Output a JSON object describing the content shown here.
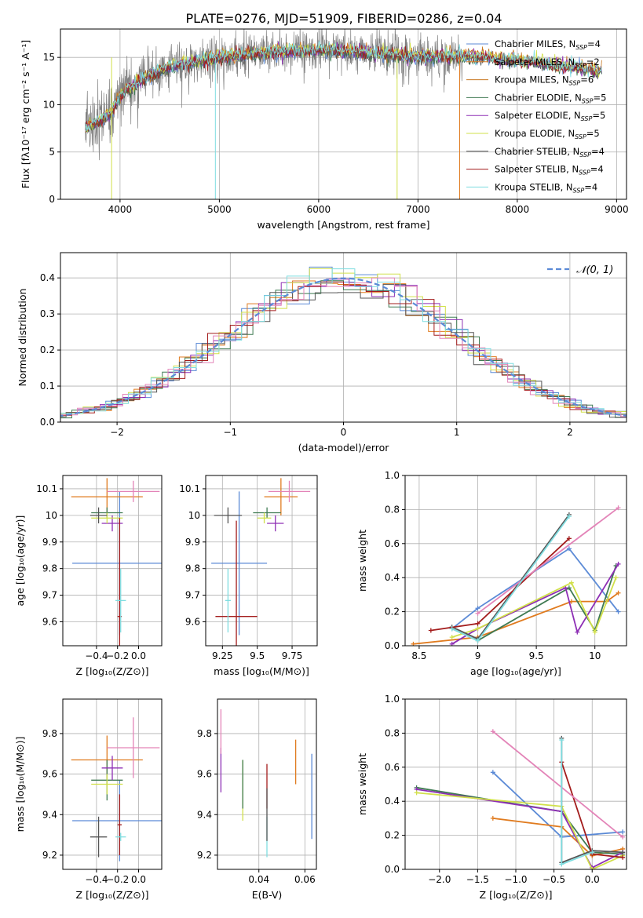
{
  "title": "PLATE=0276, MJD=51909, FIBERID=0286, z=0.04",
  "colors": {
    "c0": "#5b8ad6",
    "c1": "#e07b1f",
    "c2": "#3f7a52",
    "c3": "#8e2fb5",
    "c4": "#d1e04a",
    "c5": "#555555",
    "c6": "#a31c1c",
    "c7": "#e384b8",
    "c8": "#7fdde0",
    "grid": "#b0b0b0",
    "spectrum": "#808080"
  },
  "chart_data": [
    {
      "panel": "spectrum",
      "type": "line",
      "xlabel": "wavelength [Angstrom, rest frame]",
      "ylabel": "Flux [fλ10⁻¹⁷ erg cm⁻² s⁻¹ A⁻¹]",
      "xlim": [
        3400,
        9100
      ],
      "ylim": [
        0,
        18
      ],
      "xticks": [
        4000,
        5000,
        6000,
        7000,
        8000,
        9000
      ],
      "yticks": [
        0,
        5,
        10,
        15
      ],
      "data_range": [
        3650,
        7450
      ],
      "model_range": [
        3650,
        8850
      ],
      "approx_continuum": [
        [
          3650,
          7.5
        ],
        [
          3900,
          9
        ],
        [
          4000,
          11
        ],
        [
          4200,
          12.5
        ],
        [
          4500,
          14
        ],
        [
          5000,
          15
        ],
        [
          5500,
          15.5
        ],
        [
          6000,
          15.8
        ],
        [
          6500,
          15.5
        ],
        [
          7000,
          15
        ],
        [
          7400,
          15.2
        ],
        [
          8000,
          14.7
        ],
        [
          8500,
          14
        ],
        [
          8850,
          13.6
        ]
      ],
      "legend": [
        {
          "name": "Chabrier MILES, N_SSP=4",
          "text": "Chabrier MILES, N",
          "sub": "SSP",
          "suffix": "=4",
          "color": "#5b8ad6"
        },
        {
          "name": "Salpeter MILES, N_SSP=2",
          "text": "Salpeter MILES, N",
          "sub": "SSP",
          "suffix": "=2",
          "color": "#e07b1f"
        },
        {
          "name": "Kroupa MILES, N_SSP=6",
          "text": "Kroupa MILES, N",
          "sub": "SSP",
          "suffix": "=6",
          "color": "#c7761f"
        },
        {
          "name": "Chabrier ELODIE, N_SSP=5",
          "text": "Chabrier ELODIE, N",
          "sub": "SSP",
          "suffix": "=5",
          "color": "#3f7a52"
        },
        {
          "name": "Salpeter ELODIE, N_SSP=5",
          "text": "Salpeter ELODIE, N",
          "sub": "SSP",
          "suffix": "=5",
          "color": "#8e2fb5"
        },
        {
          "name": "Kroupa ELODIE, N_SSP=5",
          "text": "Kroupa ELODIE, N",
          "sub": "SSP",
          "suffix": "=5",
          "color": "#d1e04a"
        },
        {
          "name": "Chabrier STELIB, N_SSP=4",
          "text": "Chabrier STELIB, N",
          "sub": "SSP",
          "suffix": "=4",
          "color": "#555555"
        },
        {
          "name": "Salpeter STELIB, N_SSP=4",
          "text": "Salpeter STELIB, N",
          "sub": "SSP",
          "suffix": "=4",
          "color": "#a31c1c"
        },
        {
          "name": "Kroupa STELIB, N_SSP=4",
          "text": "Kroupa STELIB, N",
          "sub": "SSP",
          "suffix": "=4",
          "color": "#7fdde0"
        }
      ]
    },
    {
      "panel": "residuals",
      "type": "bar",
      "xlabel": "(data-model)/error",
      "ylabel": "Normed distribution",
      "xlim": [
        -2.5,
        2.5
      ],
      "ylim": [
        0,
        0.47
      ],
      "xticks": [
        -2,
        -1,
        0,
        1,
        2
      ],
      "xtick_labels": [
        "−2",
        "−1",
        "0",
        "1",
        "2"
      ],
      "yticks": [
        0.0,
        0.1,
        0.2,
        0.3,
        0.4
      ],
      "grid": true,
      "legend": {
        "label": "𝒩(0, 1)",
        "position": "top-right"
      },
      "bin_width": 0.2,
      "normal_curve": {
        "mean": 0,
        "sigma": 1
      }
    },
    {
      "panel": "Z-age",
      "type": "scatter",
      "xlabel": "Z [log₁₀(Z/Z⊙)]",
      "ylabel": "age  [log₁₀(age/yr)]",
      "xlim": [
        -0.72,
        0.22
      ],
      "ylim": [
        9.51,
        10.15
      ],
      "xticks": [
        -0.4,
        -0.2,
        0.0
      ],
      "xtick_labels": [
        "−0.4",
        "−0.2",
        "0.0"
      ],
      "yticks": [
        9.6,
        9.7,
        9.8,
        9.9,
        10.0,
        10.1
      ],
      "points": [
        {
          "color": "#5b8ad6",
          "x": -0.18,
          "xerr": 0.45,
          "y": 9.82,
          "yerr": 0.27
        },
        {
          "color": "#e07b1f",
          "x": -0.3,
          "xerr": 0.34,
          "y": 10.07,
          "yerr": 0.07
        },
        {
          "color": "#3f7a52",
          "x": -0.3,
          "xerr": 0.15,
          "y": 10.01,
          "yerr": 0.02
        },
        {
          "color": "#8e2fb5",
          "x": -0.25,
          "xerr": 0.1,
          "y": 9.97,
          "yerr": 0.03
        },
        {
          "color": "#d1e04a",
          "x": -0.3,
          "xerr": 0.15,
          "y": 9.99,
          "yerr": 0.02
        },
        {
          "color": "#555555",
          "x": -0.38,
          "xerr": 0.08,
          "y": 10.0,
          "yerr": 0.03
        },
        {
          "color": "#a31c1c",
          "x": -0.18,
          "xerr": 0.02,
          "y": 9.62,
          "yerr": 0.37
        },
        {
          "color": "#e384b8",
          "x": -0.05,
          "xerr": 0.25,
          "y": 10.09,
          "yerr": 0.04
        },
        {
          "color": "#7fdde0",
          "x": -0.17,
          "xerr": 0.05,
          "y": 9.68,
          "yerr": 0.12
        }
      ]
    },
    {
      "panel": "mass-age",
      "type": "scatter",
      "xlabel": "mass [log₁₀(M/M⊙)]",
      "ylabel": "",
      "xlim": [
        9.13,
        9.93
      ],
      "ylim": [
        9.51,
        10.15
      ],
      "xticks": [
        9.25,
        9.5,
        9.75
      ],
      "yticks": [
        9.6,
        9.7,
        9.8,
        9.9,
        10.0,
        10.1
      ],
      "points": [
        {
          "color": "#5b8ad6",
          "x": 9.37,
          "xerr": 0.2,
          "y": 9.82,
          "yerr": 0.27
        },
        {
          "color": "#e07b1f",
          "x": 9.67,
          "xerr": 0.12,
          "y": 10.07,
          "yerr": 0.07
        },
        {
          "color": "#3f7a52",
          "x": 9.57,
          "xerr": 0.1,
          "y": 10.01,
          "yerr": 0.02
        },
        {
          "color": "#8e2fb5",
          "x": 9.63,
          "xerr": 0.06,
          "y": 9.97,
          "yerr": 0.03
        },
        {
          "color": "#d1e04a",
          "x": 9.55,
          "xerr": 0.05,
          "y": 9.99,
          "yerr": 0.02
        },
        {
          "color": "#555555",
          "x": 9.29,
          "xerr": 0.1,
          "y": 10.0,
          "yerr": 0.03
        },
        {
          "color": "#a31c1c",
          "x": 9.35,
          "xerr": 0.15,
          "y": 9.62,
          "yerr": 0.36
        },
        {
          "color": "#e384b8",
          "x": 9.73,
          "xerr": 0.15,
          "y": 10.09,
          "yerr": 0.04
        },
        {
          "color": "#7fdde0",
          "x": 9.29,
          "xerr": 0.02,
          "y": 9.68,
          "yerr": 0.12
        }
      ]
    },
    {
      "panel": "age-weight",
      "type": "line",
      "xlabel": "age  [log₁₀(age/yr)]",
      "ylabel": "mass weight",
      "xlim": [
        8.38,
        10.27
      ],
      "ylim": [
        0,
        1
      ],
      "xticks": [
        8.5,
        9.0,
        9.5,
        10.0
      ],
      "yticks": [
        0.0,
        0.2,
        0.4,
        0.6,
        0.8,
        1.0
      ],
      "grid": true,
      "series": [
        {
          "color": "#5b8ad6",
          "x": [
            8.78,
            9.0,
            9.78,
            10.2
          ],
          "y": [
            0.1,
            0.22,
            0.57,
            0.2
          ]
        },
        {
          "color": "#e07b1f",
          "x": [
            8.45,
            9.0,
            9.8,
            10.1,
            10.2
          ],
          "y": [
            0.01,
            0.05,
            0.26,
            0.26,
            0.31
          ]
        },
        {
          "color": "#3f7a52",
          "x": [
            8.78,
            9.0,
            9.78,
            10.0,
            10.18
          ],
          "y": [
            0.1,
            0.03,
            0.34,
            0.09,
            0.47
          ]
        },
        {
          "color": "#8e2fb5",
          "x": [
            8.78,
            9.0,
            9.75,
            9.85,
            10.2
          ],
          "y": [
            0.01,
            0.1,
            0.34,
            0.08,
            0.48
          ]
        },
        {
          "color": "#d1e04a",
          "x": [
            8.78,
            9.0,
            9.8,
            10.0,
            10.18
          ],
          "y": [
            0.05,
            0.1,
            0.37,
            0.08,
            0.4
          ]
        },
        {
          "color": "#555555",
          "x": [
            8.78,
            9.0,
            9.78
          ],
          "y": [
            0.11,
            0.04,
            0.77
          ]
        },
        {
          "color": "#a31c1c",
          "x": [
            8.6,
            9.0,
            9.78
          ],
          "y": [
            0.09,
            0.13,
            0.63
          ]
        },
        {
          "color": "#e384b8",
          "x": [
            9.0,
            10.2
          ],
          "y": [
            0.19,
            0.81
          ]
        },
        {
          "color": "#7fdde0",
          "x": [
            8.78,
            9.0,
            9.78
          ],
          "y": [
            0.1,
            0.03,
            0.76
          ]
        }
      ]
    },
    {
      "panel": "Z-mass",
      "type": "scatter",
      "xlabel": "Z [log₁₀(Z/Z⊙)]",
      "ylabel": "mass [log₁₀(M/M⊙)]",
      "xlim": [
        -0.72,
        0.22
      ],
      "ylim": [
        9.13,
        9.97
      ],
      "xticks": [
        -0.4,
        -0.2,
        0.0
      ],
      "xtick_labels": [
        "−0.4",
        "−0.2",
        "0.0"
      ],
      "yticks": [
        9.2,
        9.4,
        9.6,
        9.8
      ],
      "points": [
        {
          "color": "#5b8ad6",
          "x": -0.18,
          "xerr": 0.45,
          "y": 9.37,
          "yerr": 0.2
        },
        {
          "color": "#e07b1f",
          "x": -0.3,
          "xerr": 0.34,
          "y": 9.67,
          "yerr": 0.12
        },
        {
          "color": "#3f7a52",
          "x": -0.3,
          "xerr": 0.15,
          "y": 9.57,
          "yerr": 0.1
        },
        {
          "color": "#8e2fb5",
          "x": -0.25,
          "xerr": 0.1,
          "y": 9.63,
          "yerr": 0.06
        },
        {
          "color": "#d1e04a",
          "x": -0.3,
          "xerr": 0.15,
          "y": 9.55,
          "yerr": 0.05
        },
        {
          "color": "#555555",
          "x": -0.38,
          "xerr": 0.08,
          "y": 9.29,
          "yerr": 0.1
        },
        {
          "color": "#a31c1c",
          "x": -0.18,
          "xerr": 0.02,
          "y": 9.35,
          "yerr": 0.15
        },
        {
          "color": "#e384b8",
          "x": -0.05,
          "xerr": 0.25,
          "y": 9.73,
          "yerr": 0.15
        },
        {
          "color": "#7fdde0",
          "x": -0.17,
          "xerr": 0.05,
          "y": 9.29,
          "yerr": 0.02
        }
      ]
    },
    {
      "panel": "EBV-mass",
      "type": "scatter",
      "xlabel": "E(B-V)",
      "ylabel": "",
      "xlim": [
        0.022,
        0.065
      ],
      "ylim": [
        9.13,
        9.97
      ],
      "xticks": [
        0.04,
        0.06
      ],
      "yticks": [
        9.2,
        9.4,
        9.6,
        9.8
      ],
      "points": [
        {
          "color": "#5b8ad6",
          "x": 0.063,
          "y": 9.49,
          "yerr": 0.21
        },
        {
          "color": "#e07b1f",
          "x": 0.056,
          "y": 9.66,
          "yerr": 0.11
        },
        {
          "color": "#8e2fb5",
          "x": 0.0235,
          "y": 9.62,
          "yerr": 0.11
        },
        {
          "color": "#e384b8",
          "x": 0.0235,
          "y": 9.81,
          "yerr": 0.11
        },
        {
          "color": "#d1e04a",
          "x": 0.033,
          "y": 9.52,
          "yerr": 0.15
        },
        {
          "color": "#3f7a52",
          "x": 0.033,
          "y": 9.55,
          "yerr": 0.12
        },
        {
          "color": "#a31c1c",
          "x": 0.0435,
          "y": 9.54,
          "yerr": 0.11
        },
        {
          "color": "#7fdde0",
          "x": 0.0435,
          "y": 9.29,
          "yerr": 0.1
        },
        {
          "color": "#555555",
          "x": 0.0435,
          "y": 9.4,
          "yerr": 0.13
        }
      ]
    },
    {
      "panel": "Z-weight",
      "type": "line",
      "xlabel": "Z [log₁₀(Z/Z⊙)]",
      "ylabel": "mass weight",
      "xlim": [
        -2.45,
        0.45
      ],
      "ylim": [
        0,
        1
      ],
      "xticks": [
        -2.0,
        -1.5,
        -1.0,
        -0.5,
        0.0
      ],
      "xtick_labels": [
        "−2.0",
        "−1.5",
        "−1.0",
        "−0.5",
        "0.0"
      ],
      "yticks": [
        0.0,
        0.2,
        0.4,
        0.6,
        0.8,
        1.0
      ],
      "grid": true,
      "series": [
        {
          "color": "#5b8ad6",
          "x": [
            -1.3,
            -0.4,
            0.4
          ],
          "y": [
            0.57,
            0.19,
            0.22
          ]
        },
        {
          "color": "#e07b1f",
          "x": [
            -1.3,
            -0.4,
            0.0,
            0.4
          ],
          "y": [
            0.3,
            0.25,
            0.08,
            0.12
          ]
        },
        {
          "color": "#3f7a52",
          "x": [
            -2.3,
            -0.4,
            0.0,
            0.4
          ],
          "y": [
            0.48,
            0.34,
            0.1,
            0.09
          ]
        },
        {
          "color": "#8e2fb5",
          "x": [
            -2.3,
            -0.4,
            0.0,
            0.4
          ],
          "y": [
            0.47,
            0.34,
            0.01,
            0.1
          ]
        },
        {
          "color": "#d1e04a",
          "x": [
            -2.3,
            -0.4,
            0.0,
            0.4
          ],
          "y": [
            0.45,
            0.37,
            0.0,
            0.08
          ]
        },
        {
          "color": "#555555",
          "x": [
            -0.4,
            -0.4,
            0.0,
            0.4
          ],
          "y": [
            0.77,
            0.04,
            0.11,
            0.1
          ]
        },
        {
          "color": "#a31c1c",
          "x": [
            -0.4,
            0.0,
            0.4
          ],
          "y": [
            0.63,
            0.09,
            0.07
          ]
        },
        {
          "color": "#e384b8",
          "x": [
            -1.3,
            0.4
          ],
          "y": [
            0.81,
            0.19
          ]
        },
        {
          "color": "#7fdde0",
          "x": [
            -0.4,
            -0.4,
            0.0
          ],
          "y": [
            0.76,
            0.03,
            0.1
          ]
        }
      ]
    }
  ]
}
